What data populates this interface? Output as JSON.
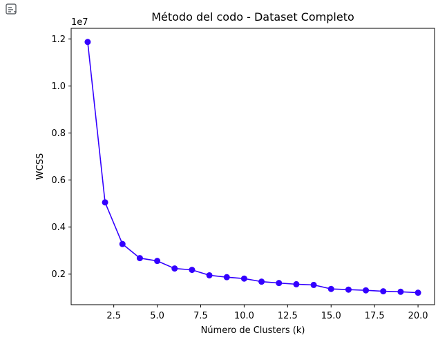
{
  "toolbar": {
    "output_icon": "output-toggle-icon"
  },
  "chart_data": {
    "type": "line",
    "title": "Método del codo - Dataset Completo",
    "xlabel": "Número de Clusters (k)",
    "ylabel": "WCSS",
    "y_scale_label": "1e7",
    "x": [
      1,
      2,
      3,
      4,
      5,
      6,
      7,
      8,
      9,
      10,
      11,
      12,
      13,
      14,
      15,
      16,
      17,
      18,
      19,
      20
    ],
    "series": [
      {
        "values": [
          11.87,
          5.05,
          3.28,
          2.68,
          2.56,
          2.24,
          2.18,
          1.95,
          1.87,
          1.81,
          1.68,
          1.62,
          1.57,
          1.54,
          1.37,
          1.34,
          1.31,
          1.27,
          1.25,
          1.21
        ],
        "values_unit_multiplier": 1000000,
        "color": "#3300ff"
      }
    ],
    "xlim": [
      0.05,
      20.95
    ],
    "ylim": [
      0.7,
      12.45
    ],
    "x_ticks": [
      2.5,
      5.0,
      7.5,
      10.0,
      12.5,
      15.0,
      17.5,
      20.0
    ],
    "x_tick_labels": [
      "2.5",
      "5.0",
      "7.5",
      "10.0",
      "12.5",
      "15.0",
      "17.5",
      "20.0"
    ],
    "y_ticks": [
      2,
      4,
      6,
      8,
      10,
      12
    ],
    "y_tick_labels": [
      "0.2",
      "0.4",
      "0.6",
      "0.8",
      "1.0",
      "1.2"
    ],
    "grid": false,
    "line_color": "#3300ff",
    "marker_color": "#3300ff"
  }
}
